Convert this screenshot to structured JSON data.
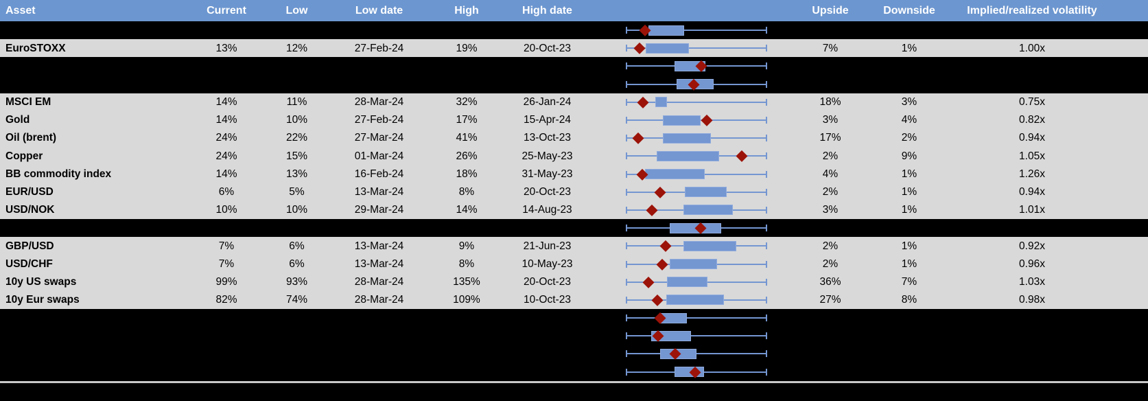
{
  "header": {
    "columns": [
      "Asset",
      "Current",
      "Low",
      "Low date",
      "High",
      "High date",
      "",
      "Upside",
      "Downside",
      "Implied/realized volatility"
    ]
  },
  "boxplot_units": "fractions of each row's whisker range: 0 = left whisker end, 1 = right whisker end; q1/q3 = box edges, marker = red diamond (current level)",
  "rows": [
    {
      "type": "spacer",
      "box": {
        "lo": 0,
        "q1": 0.158,
        "q3": 0.411,
        "hi": 1,
        "marker": 0.137
      }
    },
    {
      "type": "data",
      "asset": "EuroSTOXX",
      "current": "13%",
      "low": "12%",
      "low_date": "27-Feb-24",
      "high": "19%",
      "high_date": "20-Oct-23",
      "upside": "7%",
      "downside": "1%",
      "iv_rv": "1.00x",
      "box": {
        "lo": 0,
        "q1": 0.139,
        "q3": 0.445,
        "hi": 1,
        "marker": 0.095
      }
    },
    {
      "type": "spacer",
      "box": {
        "lo": 0,
        "q1": 0.345,
        "q3": 0.564,
        "hi": 1,
        "marker": 0.536
      }
    },
    {
      "type": "spacer",
      "box": {
        "lo": 0,
        "q1": 0.361,
        "q3": 0.62,
        "hi": 1,
        "marker": 0.479
      }
    },
    {
      "type": "data",
      "asset": "MSCI EM",
      "current": "14%",
      "low": "11%",
      "low_date": "28-Mar-24",
      "high": "32%",
      "high_date": "26-Jan-24",
      "upside": "18%",
      "downside": "3%",
      "iv_rv": "0.75x",
      "box": {
        "lo": 0,
        "q1": 0.207,
        "q3": 0.293,
        "hi": 1,
        "marker": 0.123
      }
    },
    {
      "type": "data",
      "asset": "Gold",
      "current": "14%",
      "low": "10%",
      "low_date": "27-Feb-24",
      "high": "17%",
      "high_date": "15-Apr-24",
      "upside": "3%",
      "downside": "4%",
      "iv_rv": "0.82x",
      "box": {
        "lo": 0,
        "q1": 0.264,
        "q3": 0.531,
        "hi": 1,
        "marker": 0.575
      }
    },
    {
      "type": "data",
      "asset": "Oil (brent)",
      "current": "24%",
      "low": "22%",
      "low_date": "27-Mar-24",
      "high": "41%",
      "high_date": "13-Oct-23",
      "upside": "17%",
      "downside": "2%",
      "iv_rv": "0.94x",
      "box": {
        "lo": 0,
        "q1": 0.264,
        "q3": 0.6,
        "hi": 1,
        "marker": 0.085
      }
    },
    {
      "type": "data",
      "asset": "Copper",
      "current": "24%",
      "low": "15%",
      "low_date": "01-Mar-24",
      "high": "26%",
      "high_date": "25-May-23",
      "upside": "2%",
      "downside": "9%",
      "iv_rv": "1.05x",
      "box": {
        "lo": 0,
        "q1": 0.218,
        "q3": 0.658,
        "hi": 1,
        "marker": 0.82
      }
    },
    {
      "type": "data",
      "asset": "BB commodity index",
      "current": "14%",
      "low": "13%",
      "low_date": "16-Feb-24",
      "high": "18%",
      "high_date": "31-May-23",
      "upside": "4%",
      "downside": "1%",
      "iv_rv": "1.26x",
      "box": {
        "lo": 0,
        "q1": 0.134,
        "q3": 0.556,
        "hi": 1,
        "marker": 0.118
      }
    },
    {
      "type": "data",
      "asset": "EUR/USD",
      "current": "6%",
      "low": "5%",
      "low_date": "13-Mar-24",
      "high": "8%",
      "high_date": "20-Oct-23",
      "upside": "2%",
      "downside": "1%",
      "iv_rv": "0.94x",
      "box": {
        "lo": 0,
        "q1": 0.418,
        "q3": 0.713,
        "hi": 1,
        "marker": 0.241
      }
    },
    {
      "type": "data",
      "asset": "USD/NOK",
      "current": "10%",
      "low": "10%",
      "low_date": "29-Mar-24",
      "high": "14%",
      "high_date": "14-Aug-23",
      "upside": "3%",
      "downside": "1%",
      "iv_rv": "1.01x",
      "box": {
        "lo": 0,
        "q1": 0.41,
        "q3": 0.758,
        "hi": 1,
        "marker": 0.186
      }
    },
    {
      "type": "spacer",
      "box": {
        "lo": 0,
        "q1": 0.309,
        "q3": 0.677,
        "hi": 1,
        "marker": 0.528
      }
    },
    {
      "type": "data",
      "asset": "GBP/USD",
      "current": "7%",
      "low": "6%",
      "low_date": "13-Mar-24",
      "high": "9%",
      "high_date": "21-Jun-23",
      "upside": "2%",
      "downside": "1%",
      "iv_rv": "0.92x",
      "box": {
        "lo": 0,
        "q1": 0.41,
        "q3": 0.78,
        "hi": 1,
        "marker": 0.283
      }
    },
    {
      "type": "data",
      "asset": "USD/CHF",
      "current": "7%",
      "low": "6%",
      "low_date": "13-Mar-24",
      "high": "8%",
      "high_date": "10-May-23",
      "upside": "2%",
      "downside": "1%",
      "iv_rv": "0.96x",
      "box": {
        "lo": 0,
        "q1": 0.312,
        "q3": 0.648,
        "hi": 1,
        "marker": 0.259
      }
    },
    {
      "type": "data",
      "asset": "10y US swaps",
      "current": "99%",
      "low": "93%",
      "low_date": "28-Mar-24",
      "high": "135%",
      "high_date": "20-Oct-23",
      "upside": "36%",
      "downside": "7%",
      "iv_rv": "1.03x",
      "box": {
        "lo": 0,
        "q1": 0.293,
        "q3": 0.58,
        "hi": 1,
        "marker": 0.158
      }
    },
    {
      "type": "data",
      "asset": "10y Eur swaps",
      "current": "82%",
      "low": "74%",
      "low_date": "28-Mar-24",
      "high": "109%",
      "high_date": "10-Oct-23",
      "upside": "27%",
      "downside": "8%",
      "iv_rv": "0.98x",
      "box": {
        "lo": 0,
        "q1": 0.288,
        "q3": 0.693,
        "hi": 1,
        "marker": 0.223
      }
    },
    {
      "type": "spacer",
      "box": {
        "lo": 0,
        "q1": 0.247,
        "q3": 0.434,
        "hi": 1,
        "marker": 0.242
      }
    },
    {
      "type": "spacer",
      "box": {
        "lo": 0,
        "q1": 0.179,
        "q3": 0.463,
        "hi": 1,
        "marker": 0.228
      }
    },
    {
      "type": "spacer",
      "box": {
        "lo": 0,
        "q1": 0.244,
        "q3": 0.499,
        "hi": 1,
        "marker": 0.348
      }
    },
    {
      "type": "spacer",
      "box": {
        "lo": 0,
        "q1": 0.345,
        "q3": 0.552,
        "hi": 1,
        "marker": 0.491
      }
    }
  ],
  "colors": {
    "header_bg": "#6c96cf",
    "header_text": "#ffffff",
    "row_bg": "#d9d9d9",
    "spacer_bg": "#000000",
    "box_fill": "#7496d1",
    "box_border": "#8fabdc",
    "whisker": "#7496d1",
    "diamond": "#9c1309",
    "separator": "#c9c9c9",
    "text": "#000000"
  }
}
